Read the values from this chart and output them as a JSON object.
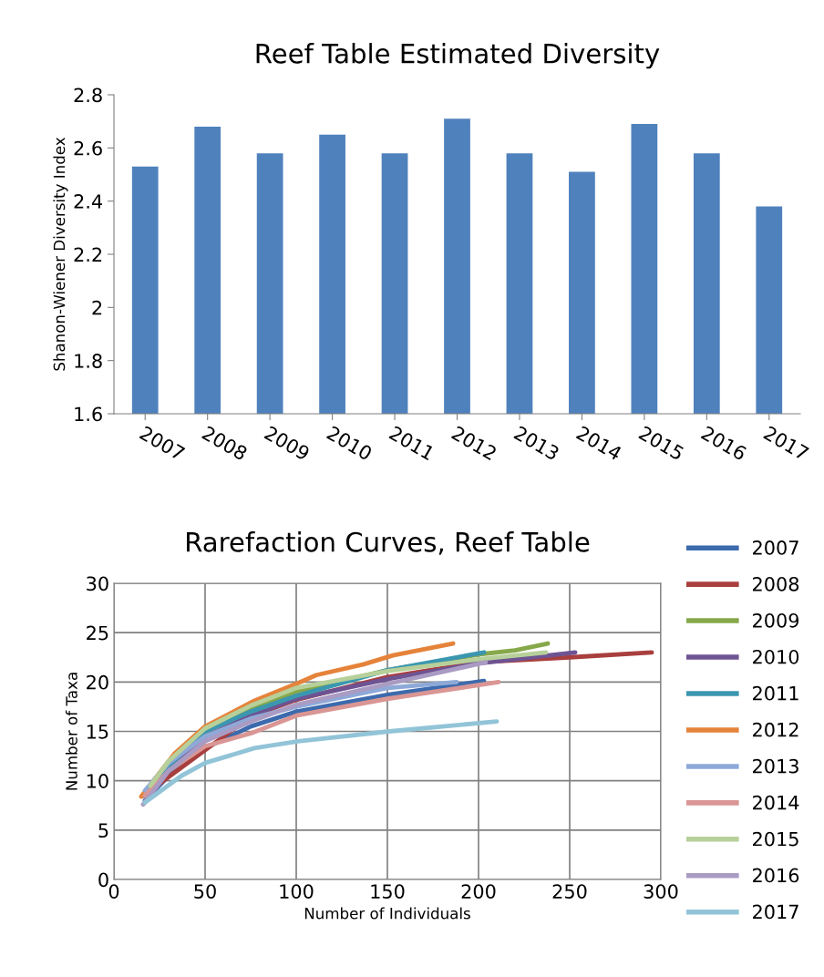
{
  "chart_data": [
    {
      "type": "bar",
      "title": "Reef Table Estimated Diversity",
      "ylabel": "Shanon-Wiener Diversity Index",
      "categories": [
        "2007",
        "2008",
        "2009",
        "2010",
        "2011",
        "2012",
        "2013",
        "2014",
        "2015",
        "2016",
        "2017"
      ],
      "values": [
        2.53,
        2.68,
        2.58,
        2.65,
        2.58,
        2.71,
        2.58,
        2.51,
        2.69,
        2.58,
        2.38
      ],
      "color": "#4f81bd",
      "ylim": [
        1.6,
        2.8
      ],
      "yticks": [
        {
          "value": 1.6,
          "label": "1.6"
        },
        {
          "value": 1.8,
          "label": "1.8"
        },
        {
          "value": 2,
          "label": "2"
        },
        {
          "value": 2.2,
          "label": "2.2"
        },
        {
          "value": 2.4,
          "label": "2.4"
        },
        {
          "value": 2.6,
          "label": "2.6"
        },
        {
          "value": 2.8,
          "label": "2.8"
        }
      ],
      "grid": false,
      "legend": false
    },
    {
      "type": "line",
      "title": "Rarefaction Curves, Reef Table",
      "xlabel": "Number of Individuals",
      "ylabel": "Number of Taxa",
      "xlim": [
        0,
        300
      ],
      "xticks": [
        0,
        50,
        100,
        150,
        200,
        250,
        300
      ],
      "ylim": [
        0,
        30
      ],
      "yticks": [
        0,
        5,
        10,
        15,
        20,
        25,
        30
      ],
      "grid": true,
      "legend": "right",
      "marker": "none",
      "line_style": "solid",
      "series": [
        {
          "name": "2007",
          "color": "#3c6aad",
          "x": [
            17,
            30,
            50,
            75,
            100,
            150,
            203
          ],
          "values": [
            8.0,
            10.5,
            13.3,
            15.5,
            17.0,
            18.7,
            20.1
          ]
        },
        {
          "name": "2008",
          "color": "#a83f3e",
          "x": [
            16,
            75,
            100,
            150,
            200,
            250,
            295
          ],
          "values": [
            8.5,
            16.5,
            18.2,
            20.5,
            22.0,
            22.5,
            23.0
          ]
        },
        {
          "name": "2009",
          "color": "#86a84a",
          "x": [
            18,
            30,
            50,
            75,
            100,
            150,
            200,
            220,
            238
          ],
          "values": [
            9.0,
            11.5,
            15.0,
            17.2,
            19.0,
            21.2,
            22.8,
            23.2,
            23.9
          ]
        },
        {
          "name": "2010",
          "color": "#6e5393",
          "x": [
            16,
            30,
            50,
            75,
            100,
            150,
            200,
            253
          ],
          "values": [
            8.5,
            11.0,
            14.5,
            16.6,
            18.3,
            20.3,
            21.9,
            23.0
          ]
        },
        {
          "name": "2011",
          "color": "#3b97b0",
          "x": [
            17,
            30,
            50,
            75,
            100,
            150,
            203
          ],
          "values": [
            8.8,
            11.5,
            15.0,
            17.0,
            18.6,
            21.2,
            23.0
          ]
        },
        {
          "name": "2012",
          "color": "#e5833a",
          "x": [
            15,
            33,
            50,
            77,
            101,
            111,
            137,
            153,
            186
          ],
          "values": [
            8.4,
            12.7,
            15.5,
            18.1,
            19.9,
            20.7,
            21.8,
            22.7,
            23.9
          ]
        },
        {
          "name": "2013",
          "color": "#8ea9d8",
          "x": [
            17,
            30,
            50,
            75,
            100,
            150,
            188
          ],
          "values": [
            9.0,
            11.8,
            14.5,
            16.3,
            17.5,
            19.4,
            20.0
          ]
        },
        {
          "name": "2014",
          "color": "#d99694",
          "x": [
            17,
            30,
            50,
            75,
            100,
            150,
            211
          ],
          "values": [
            8.5,
            11.0,
            13.5,
            14.8,
            16.6,
            18.3,
            20.0
          ]
        },
        {
          "name": "2015",
          "color": "#b7d09a",
          "x": [
            20,
            30,
            50,
            75,
            100,
            150,
            200,
            237
          ],
          "values": [
            9.5,
            12.0,
            15.3,
            17.6,
            19.4,
            21.1,
            22.3,
            23.0
          ]
        },
        {
          "name": "2016",
          "color": "#a99bc3",
          "x": [
            16,
            30,
            50,
            75,
            100,
            150,
            204
          ],
          "values": [
            7.6,
            11.0,
            14.0,
            16.0,
            17.7,
            19.8,
            22.0
          ]
        },
        {
          "name": "2017",
          "color": "#92c4d8",
          "x": [
            17,
            37,
            50,
            77,
            101,
            151,
            210
          ],
          "values": [
            7.8,
            10.5,
            11.8,
            13.3,
            14.0,
            15.0,
            16.0
          ]
        }
      ]
    }
  ]
}
